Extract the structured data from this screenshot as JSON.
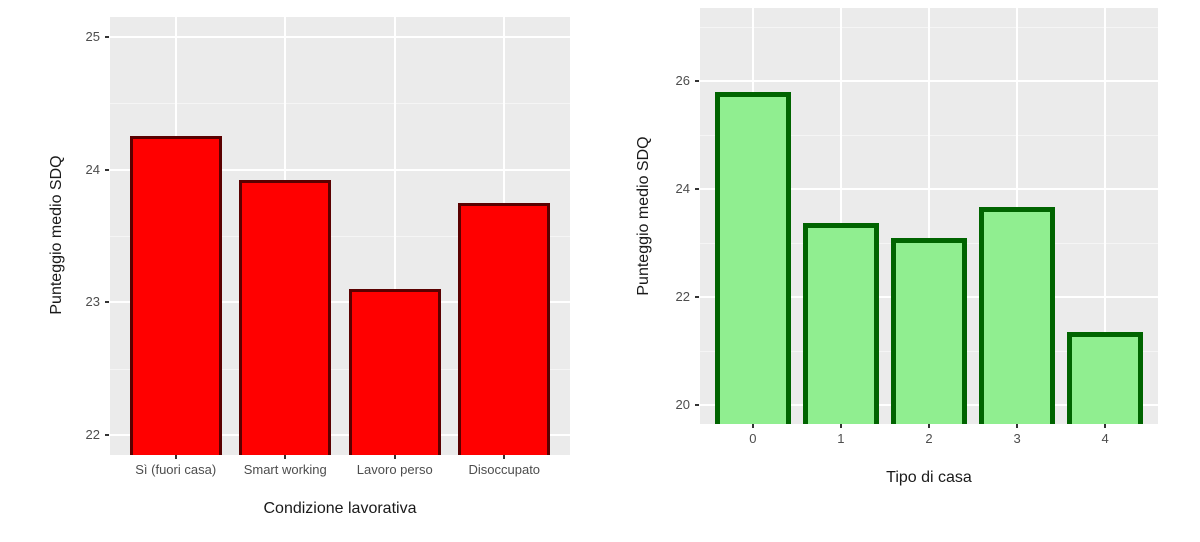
{
  "chart_data": [
    {
      "type": "bar",
      "title": "",
      "xlabel": "Condizione lavorativa",
      "ylabel": "Punteggio medio SDQ",
      "categories": [
        "Sì (fuori casa)",
        "Smart working",
        "Lavoro perso",
        "Disoccupato"
      ],
      "values": [
        24.25,
        23.92,
        23.1,
        23.75
      ],
      "ylim": [
        21.85,
        25.15
      ],
      "yticks": [
        22,
        23,
        24,
        25
      ],
      "grid": true,
      "fill_color": "#ff0000",
      "edge_color": "#5a0000"
    },
    {
      "type": "bar",
      "title": "",
      "xlabel": "Tipo di casa",
      "ylabel": "Punteggio medio SDQ",
      "categories": [
        "0",
        "1",
        "2",
        "3",
        "4"
      ],
      "values": [
        25.8,
        23.37,
        23.1,
        23.67,
        21.35
      ],
      "ylim": [
        19.65,
        27.35
      ],
      "yticks": [
        20,
        22,
        24,
        26
      ],
      "grid": true,
      "fill_color": "#90ee90",
      "edge_color": "#006400"
    }
  ],
  "left": {
    "xlabel": "Condizione lavorativa",
    "ylabel": "Punteggio medio SDQ",
    "yticks": [
      "22",
      "23",
      "24",
      "25"
    ],
    "xticks": [
      "Sì (fuori casa)",
      "Smart working",
      "Lavoro perso",
      "Disoccupato"
    ]
  },
  "right": {
    "xlabel": "Tipo di casa",
    "ylabel": "Punteggio medio SDQ",
    "yticks": [
      "20",
      "22",
      "24",
      "26"
    ],
    "xticks": [
      "0",
      "1",
      "2",
      "3",
      "4"
    ]
  }
}
